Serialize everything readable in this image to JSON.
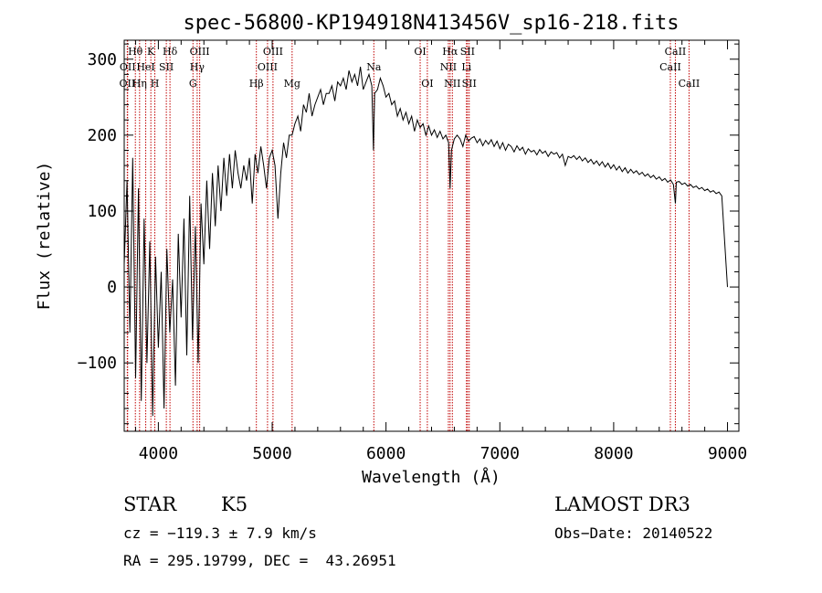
{
  "chart_data": {
    "type": "line",
    "title": "spec-56800-KP194918N413456V_sp16-218.fits",
    "xlabel": "Wavelength (Å)",
    "ylabel": "Flux (relative)",
    "xlim": [
      3700,
      9100
    ],
    "ylim": [
      -190,
      325
    ],
    "xticks": [
      {
        "value": 4000,
        "label": "4000"
      },
      {
        "value": 5000,
        "label": "5000"
      },
      {
        "value": 6000,
        "label": "6000"
      },
      {
        "value": 7000,
        "label": "7000"
      },
      {
        "value": 8000,
        "label": "8000"
      },
      {
        "value": 9000,
        "label": "9000"
      }
    ],
    "yticks": [
      {
        "value": -100,
        "label": "−100"
      },
      {
        "value": 0,
        "label": "0"
      },
      {
        "value": 100,
        "label": "100"
      },
      {
        "value": 200,
        "label": "200"
      },
      {
        "value": 300,
        "label": "300"
      }
    ],
    "grid": false,
    "series": [
      {
        "x": [
          3700,
          3725,
          3750,
          3775,
          3800,
          3825,
          3850,
          3875,
          3900,
          3925,
          3950,
          3975,
          4000,
          4025,
          4050,
          4075,
          4100,
          4125,
          4150,
          4175,
          4200,
          4225,
          4250,
          4275,
          4300,
          4325,
          4350,
          4375,
          4400,
          4425,
          4450,
          4475,
          4500,
          4525,
          4550,
          4575,
          4600,
          4625,
          4650,
          4675,
          4700,
          4725,
          4750,
          4775,
          4800,
          4825,
          4850,
          4875,
          4900,
          4925,
          4950,
          4975,
          5000,
          5025,
          5050,
          5075,
          5100,
          5125,
          5150,
          5175,
          5200,
          5225,
          5250,
          5275,
          5300,
          5325,
          5350,
          5375,
          5400,
          5425,
          5450,
          5475,
          5500,
          5525,
          5550,
          5575,
          5600,
          5625,
          5650,
          5675,
          5700,
          5725,
          5750,
          5775,
          5800,
          5825,
          5850,
          5875,
          5890,
          5900,
          5925,
          5950,
          5975,
          6000,
          6025,
          6050,
          6075,
          6100,
          6125,
          6150,
          6175,
          6200,
          6225,
          6250,
          6275,
          6300,
          6325,
          6350,
          6375,
          6400,
          6425,
          6450,
          6475,
          6500,
          6525,
          6550,
          6563,
          6575,
          6600,
          6625,
          6650,
          6675,
          6700,
          6725,
          6750,
          6775,
          6800,
          6825,
          6850,
          6875,
          6900,
          6925,
          6950,
          6975,
          7000,
          7025,
          7050,
          7075,
          7100,
          7125,
          7150,
          7175,
          7200,
          7225,
          7250,
          7275,
          7300,
          7325,
          7350,
          7375,
          7400,
          7425,
          7450,
          7475,
          7500,
          7525,
          7550,
          7575,
          7600,
          7625,
          7650,
          7675,
          7700,
          7725,
          7750,
          7775,
          7800,
          7825,
          7850,
          7875,
          7900,
          7925,
          7950,
          7975,
          8000,
          8025,
          8050,
          8075,
          8100,
          8125,
          8150,
          8175,
          8200,
          8225,
          8250,
          8275,
          8300,
          8325,
          8350,
          8375,
          8400,
          8425,
          8450,
          8475,
          8500,
          8525,
          8542,
          8550,
          8575,
          8600,
          8625,
          8650,
          8675,
          8700,
          8725,
          8750,
          8775,
          8800,
          8825,
          8850,
          8875,
          8900,
          8925,
          8950,
          8975,
          9000
        ],
        "y": [
          30,
          140,
          -60,
          170,
          -120,
          130,
          -150,
          90,
          -100,
          60,
          -170,
          40,
          -80,
          20,
          -160,
          50,
          -60,
          10,
          -130,
          70,
          -40,
          90,
          -90,
          120,
          -70,
          80,
          -100,
          110,
          30,
          140,
          50,
          150,
          80,
          160,
          100,
          170,
          120,
          175,
          130,
          180,
          150,
          130,
          160,
          140,
          170,
          110,
          175,
          150,
          185,
          160,
          130,
          170,
          180,
          160,
          90,
          150,
          190,
          170,
          200,
          200,
          215,
          225,
          205,
          240,
          230,
          255,
          225,
          240,
          250,
          260,
          240,
          255,
          255,
          265,
          245,
          270,
          265,
          275,
          260,
          285,
          270,
          280,
          265,
          290,
          260,
          270,
          280,
          265,
          180,
          255,
          260,
          275,
          265,
          250,
          255,
          240,
          245,
          225,
          235,
          220,
          230,
          215,
          225,
          205,
          220,
          210,
          215,
          200,
          212,
          200,
          207,
          197,
          205,
          195,
          200,
          190,
          130,
          180,
          195,
          200,
          195,
          185,
          200,
          192,
          196,
          198,
          190,
          195,
          186,
          193,
          188,
          194,
          185,
          192,
          182,
          190,
          180,
          188,
          185,
          178,
          186,
          180,
          184,
          175,
          182,
          178,
          180,
          174,
          181,
          176,
          179,
          172,
          178,
          175,
          177,
          170,
          175,
          160,
          172,
          170,
          173,
          168,
          172,
          166,
          170,
          164,
          168,
          162,
          166,
          160,
          165,
          158,
          163,
          156,
          161,
          154,
          159,
          152,
          157,
          150,
          155,
          150,
          153,
          148,
          151,
          146,
          149,
          144,
          147,
          142,
          145,
          140,
          143,
          138,
          141,
          135,
          110,
          138,
          139,
          135,
          137,
          133,
          135,
          131,
          133,
          129,
          131,
          127,
          129,
          125,
          127,
          123,
          125,
          120,
          60,
          0
        ]
      }
    ],
    "lines": [
      {
        "x": 3727,
        "label": "OII",
        "row": 2
      },
      {
        "x": 3730,
        "label": "OII",
        "row": 1
      },
      {
        "x": 3798,
        "label": "Hθ",
        "row": 0
      },
      {
        "x": 3835,
        "label": "Hη",
        "row": 2
      },
      {
        "x": 3889,
        "label": "HeI",
        "row": 1
      },
      {
        "x": 3934,
        "label": "K",
        "row": 0
      },
      {
        "x": 3969,
        "label": "H",
        "row": 2
      },
      {
        "x": 4070,
        "label": "SII",
        "row": 1
      },
      {
        "x": 4102,
        "label": "Hδ",
        "row": 0
      },
      {
        "x": 4304,
        "label": "G",
        "row": 2
      },
      {
        "x": 4341,
        "label": "Hγ",
        "row": 1
      },
      {
        "x": 4363,
        "label": "OIII",
        "row": 0
      },
      {
        "x": 4861,
        "label": "Hβ",
        "row": 2
      },
      {
        "x": 4959,
        "label": "OIII",
        "row": 1
      },
      {
        "x": 5007,
        "label": "OIII",
        "row": 0
      },
      {
        "x": 5175,
        "label": "Mg",
        "row": 2
      },
      {
        "x": 5893,
        "label": "Na",
        "row": 1
      },
      {
        "x": 6300,
        "label": "OI",
        "row": 0
      },
      {
        "x": 6363,
        "label": "OI",
        "row": 2
      },
      {
        "x": 6548,
        "label": "NII",
        "row": 1
      },
      {
        "x": 6563,
        "label": "Hα",
        "row": 0
      },
      {
        "x": 6583,
        "label": "NII",
        "row": 2
      },
      {
        "x": 6707,
        "label": "Li",
        "row": 1
      },
      {
        "x": 6716,
        "label": "SII",
        "row": 0
      },
      {
        "x": 6731,
        "label": "SII",
        "row": 2
      },
      {
        "x": 8498,
        "label": "CaII",
        "row": 1
      },
      {
        "x": 8542,
        "label": "CaII",
        "row": 0
      },
      {
        "x": 8662,
        "label": "CaII",
        "row": 2
      }
    ]
  },
  "info": {
    "class": "STAR",
    "subclass": "K5",
    "survey": "LAMOST DR3",
    "redshift": "cz = −119.3 ± 7.9 km/s",
    "obs_date": "Obs−Date: 20140522",
    "coords": "RA = 295.19799, DEC =  43.26951"
  }
}
